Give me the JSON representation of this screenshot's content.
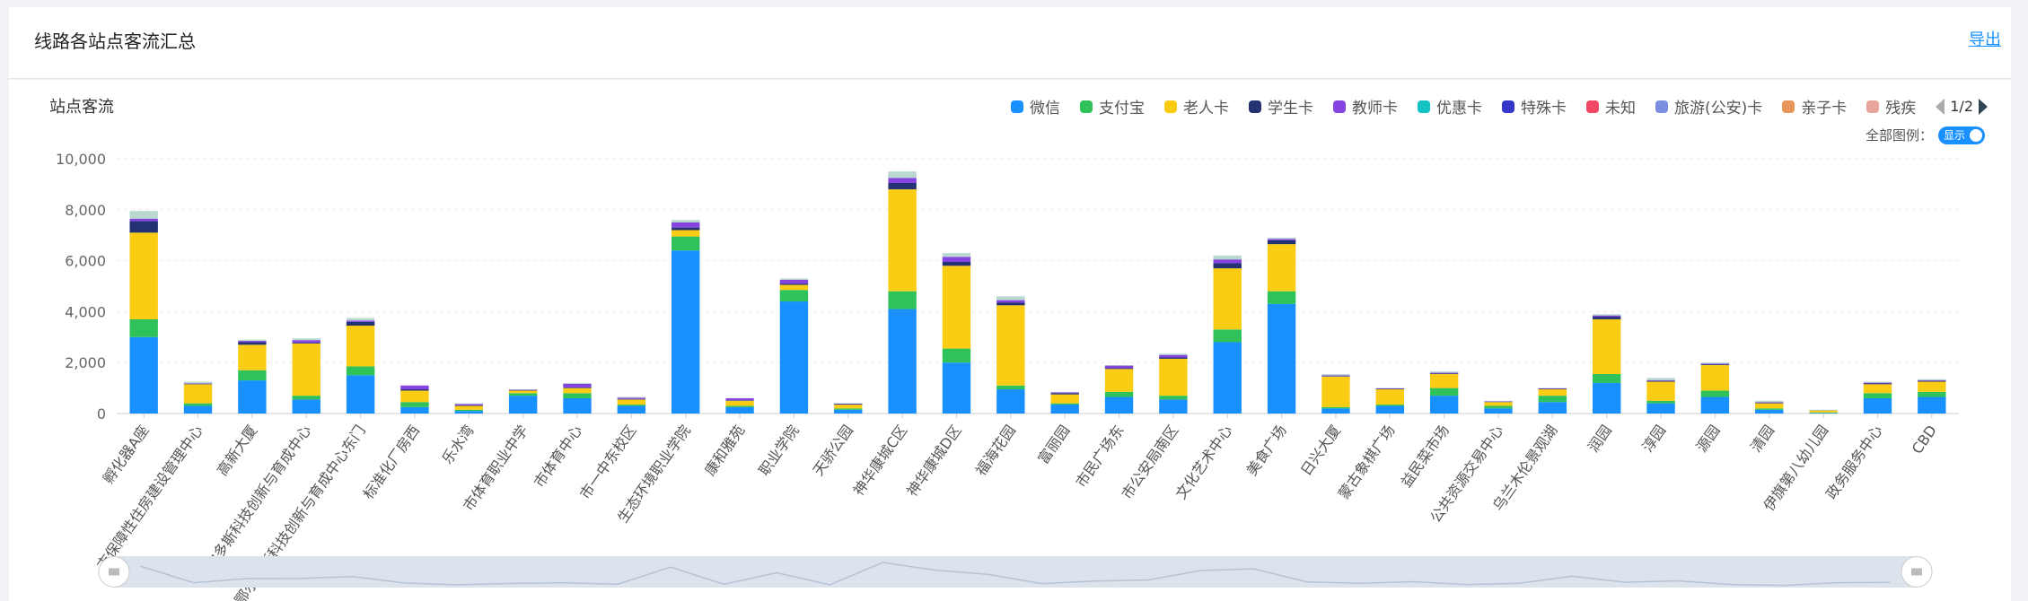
{
  "header": {
    "title": "线路各站点客流汇总",
    "export_label": "导出"
  },
  "panel": {
    "subtitle": "站点客流",
    "all_legend_label": "全部图例：",
    "toggle_label": "显示",
    "pager": "1/2"
  },
  "legend": [
    {
      "name": "微信",
      "color": "#1890ff"
    },
    {
      "name": "支付宝",
      "color": "#2fc25b"
    },
    {
      "name": "老人卡",
      "color": "#facc14"
    },
    {
      "name": "学生卡",
      "color": "#223273"
    },
    {
      "name": "教师卡",
      "color": "#8543e0"
    },
    {
      "name": "优惠卡",
      "color": "#13c2c2"
    },
    {
      "name": "特殊卡",
      "color": "#3436c7"
    },
    {
      "name": "未知",
      "color": "#f04864"
    },
    {
      "name": "旅游(公安)卡",
      "color": "#7b8fe0"
    },
    {
      "name": "亲子卡",
      "color": "#e8955a"
    },
    {
      "name": "残疾",
      "color": "#e8a59b"
    }
  ],
  "chart_data": {
    "type": "bar",
    "stacked": true,
    "title": "站点客流",
    "ylim": [
      0,
      10000
    ],
    "yticks": [
      "0",
      "2,000",
      "4,000",
      "6,000",
      "8,000",
      "10,000"
    ],
    "categories": [
      "孵化器A座",
      "市保障性住房建设管理中心",
      "高新大厦",
      "鄂尔多斯科技创新与育成中心",
      "鄂尔多斯科技创新与育成中心东门",
      "标准化厂房西",
      "乐水湾",
      "市体育职业中学",
      "市体育中心",
      "市一中东校区",
      "生态环境职业学院",
      "康和雅苑",
      "职业学院",
      "天骄公园",
      "神华康城C区",
      "神华康城D区",
      "福海花园",
      "富丽园",
      "市民广场东",
      "市公安局南区",
      "文化艺术中心",
      "美食广场",
      "日兴大厦",
      "蒙古象棋广场",
      "益民菜市场",
      "公共资源交易中心",
      "乌兰木伦景观湖",
      "润园",
      "淳园",
      "源园",
      "清园",
      "伊旗第八幼儿园",
      "政务服务中心",
      "CBD"
    ],
    "series": [
      {
        "name": "微信",
        "values": [
          3000,
          300,
          1300,
          550,
          1500,
          250,
          100,
          700,
          600,
          300,
          6400,
          250,
          4400,
          150,
          4100,
          2000,
          950,
          350,
          650,
          550,
          2800,
          4300,
          200,
          300,
          700,
          200,
          450,
          1200,
          400,
          650,
          150,
          20,
          600,
          650
        ]
      },
      {
        "name": "支付宝",
        "values": [
          700,
          100,
          400,
          150,
          350,
          200,
          50,
          100,
          200,
          50,
          550,
          50,
          450,
          50,
          700,
          550,
          150,
          50,
          200,
          150,
          500,
          500,
          50,
          50,
          300,
          100,
          250,
          350,
          100,
          250,
          50,
          20,
          200,
          200
        ]
      },
      {
        "name": "老人卡",
        "values": [
          3400,
          750,
          1000,
          2050,
          1600,
          450,
          150,
          100,
          200,
          200,
          250,
          200,
          200,
          150,
          4000,
          3250,
          3150,
          350,
          900,
          1450,
          2400,
          1850,
          1200,
          600,
          550,
          150,
          250,
          2150,
          750,
          1000,
          200,
          80,
          350,
          400
        ]
      },
      {
        "name": "学生卡",
        "values": [
          450,
          20,
          100,
          30,
          150,
          50,
          20,
          20,
          20,
          20,
          100,
          20,
          50,
          20,
          250,
          150,
          100,
          50,
          30,
          50,
          200,
          150,
          20,
          20,
          20,
          10,
          20,
          100,
          30,
          30,
          20,
          5,
          30,
          30
        ]
      },
      {
        "name": "教师卡",
        "values": [
          100,
          20,
          50,
          100,
          50,
          150,
          50,
          20,
          150,
          50,
          200,
          80,
          150,
          20,
          200,
          200,
          100,
          30,
          100,
          100,
          150,
          50,
          30,
          20,
          30,
          20,
          20,
          50,
          30,
          30,
          20,
          5,
          30,
          30
        ]
      },
      {
        "name": "优惠卡",
        "values": [
          300,
          60,
          50,
          70,
          100,
          0,
          30,
          10,
          30,
          30,
          100,
          0,
          50,
          10,
          250,
          150,
          150,
          20,
          20,
          50,
          150,
          50,
          50,
          10,
          50,
          20,
          10,
          50,
          90,
          40,
          60,
          20,
          40,
          40
        ]
      }
    ]
  }
}
